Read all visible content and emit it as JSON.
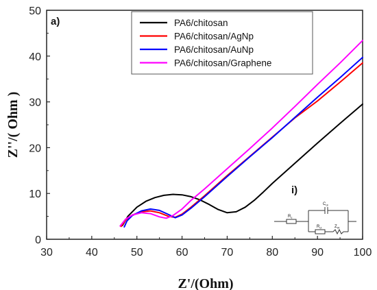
{
  "chart_data": {
    "type": "line",
    "panel_label": "a)",
    "xlabel": "Z'/(Ohm)",
    "ylabel": "Z''/( Ohm )",
    "xlim": [
      30,
      100
    ],
    "ylim": [
      0,
      50
    ],
    "xticks": [
      "30",
      "40",
      "50",
      "60",
      "70",
      "80",
      "90",
      "100"
    ],
    "yticks": [
      "0",
      "10",
      "20",
      "30",
      "40",
      "50"
    ],
    "grid": false,
    "legend_position": "top-right",
    "series": [
      {
        "name": "PA6/chitosan",
        "color": "#000000",
        "points": [
          [
            46.8,
            3.0
          ],
          [
            48,
            5.0
          ],
          [
            50,
            7.0
          ],
          [
            52,
            8.3
          ],
          [
            54,
            9.1
          ],
          [
            56,
            9.6
          ],
          [
            58,
            9.8
          ],
          [
            60,
            9.7
          ],
          [
            62,
            9.3
          ],
          [
            64,
            8.6
          ],
          [
            66,
            7.6
          ],
          [
            68,
            6.5
          ],
          [
            70,
            5.8
          ],
          [
            72,
            6.0
          ],
          [
            74,
            7.0
          ],
          [
            76,
            8.5
          ],
          [
            78,
            10.3
          ],
          [
            80,
            12.2
          ],
          [
            85,
            16.6
          ],
          [
            90,
            21.0
          ],
          [
            95,
            25.3
          ],
          [
            100,
            29.5
          ]
        ]
      },
      {
        "name": "PA6/chitosan/AgNp",
        "color": "#ff0000",
        "points": [
          [
            46.5,
            2.8
          ],
          [
            47.5,
            4.2
          ],
          [
            49,
            5.3
          ],
          [
            51,
            6.0
          ],
          [
            53,
            6.2
          ],
          [
            55,
            5.8
          ],
          [
            57,
            5.0
          ],
          [
            58.5,
            4.8
          ],
          [
            60,
            5.5
          ],
          [
            62,
            7.0
          ],
          [
            65,
            9.5
          ],
          [
            70,
            13.9
          ],
          [
            75,
            18.1
          ],
          [
            80,
            22.3
          ],
          [
            85,
            26.5
          ],
          [
            90,
            30.2
          ],
          [
            95,
            34.3
          ],
          [
            100,
            38.5
          ]
        ]
      },
      {
        "name": "PA6/chitosan/AuNp",
        "color": "#0000ff",
        "points": [
          [
            47.2,
            2.7
          ],
          [
            47.8,
            4.0
          ],
          [
            49,
            5.2
          ],
          [
            51,
            6.2
          ],
          [
            53,
            6.6
          ],
          [
            55,
            6.3
          ],
          [
            57,
            5.4
          ],
          [
            58.5,
            4.7
          ],
          [
            60,
            5.3
          ],
          [
            62,
            6.8
          ],
          [
            65,
            9.3
          ],
          [
            70,
            13.7
          ],
          [
            75,
            18.0
          ],
          [
            80,
            22.2
          ],
          [
            85,
            26.6
          ],
          [
            90,
            31.0
          ],
          [
            95,
            35.3
          ],
          [
            100,
            39.7
          ]
        ]
      },
      {
        "name": "PA6/chitosan/Graphene",
        "color": "#ff00ff",
        "points": [
          [
            46.3,
            2.9
          ],
          [
            47.5,
            4.4
          ],
          [
            49,
            5.3
          ],
          [
            51,
            5.8
          ],
          [
            53,
            5.6
          ],
          [
            55,
            4.9
          ],
          [
            56.5,
            4.6
          ],
          [
            58,
            5.2
          ],
          [
            60,
            6.6
          ],
          [
            62,
            8.5
          ],
          [
            65,
            11.0
          ],
          [
            70,
            15.4
          ],
          [
            75,
            19.8
          ],
          [
            80,
            24.3
          ],
          [
            85,
            29.0
          ],
          [
            90,
            33.8
          ],
          [
            95,
            38.5
          ],
          [
            100,
            43.4
          ]
        ]
      }
    ],
    "inset": {
      "label": "i)",
      "components": [
        "R",
        "C",
        "R",
        "Z"
      ],
      "subscripts": [
        "s",
        "dl",
        "ct",
        "W"
      ]
    }
  }
}
